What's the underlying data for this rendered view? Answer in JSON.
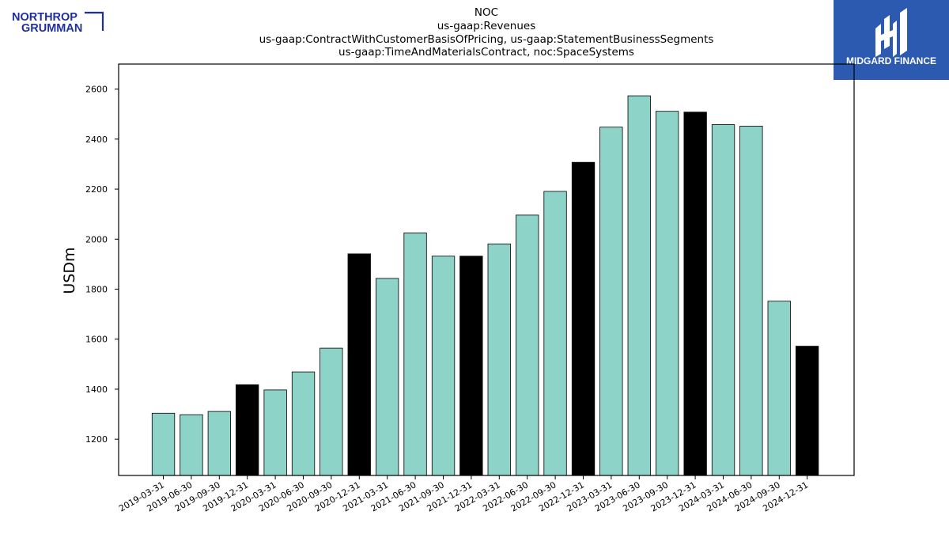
{
  "logos": {
    "left_line1": "NORTHROP",
    "left_line2": "GRUMMAN",
    "right_text": "MIDGARD FINANCE"
  },
  "colors": {
    "bar_default": "#8dd3c7",
    "bar_highlight": "#000000",
    "bar_edge": "#000000",
    "left_logo": "#1f2f9e",
    "right_logo_bg": "#2c5ab0"
  },
  "chart_data": {
    "type": "bar",
    "title": [
      "NOC",
      "us-gaap:Revenues",
      "us-gaap:ContractWithCustomerBasisOfPricing, us-gaap:StatementBusinessSegments",
      "us-gaap:TimeAndMaterialsContract, noc:SpaceSystems"
    ],
    "xlabel": "",
    "ylabel": "USDm",
    "ylim": [
      1055,
      2700
    ],
    "yticks": [
      1200,
      1400,
      1600,
      1800,
      2000,
      2200,
      2400,
      2600
    ],
    "categories": [
      "2019-03-31",
      "2019-06-30",
      "2019-09-30",
      "2019-12-31",
      "2020-03-31",
      "2020-06-30",
      "2020-09-30",
      "2020-12-31",
      "2021-03-31",
      "2021-06-30",
      "2021-09-30",
      "2021-12-31",
      "2022-03-31",
      "2022-06-30",
      "2022-09-30",
      "2022-12-31",
      "2023-03-31",
      "2023-06-30",
      "2023-09-30",
      "2023-12-31",
      "2024-03-31",
      "2024-06-30",
      "2024-09-30",
      "2024-12-31"
    ],
    "values": [
      1304,
      1298,
      1311,
      1418,
      1397,
      1469,
      1564,
      1941,
      1843,
      2025,
      1932,
      1932,
      1981,
      2096,
      2191,
      2307,
      2448,
      2573,
      2511,
      2508,
      2458,
      2452,
      1752,
      1572
    ],
    "highlighted": [
      3,
      7,
      11,
      15,
      19,
      23
    ],
    "grid": false
  }
}
